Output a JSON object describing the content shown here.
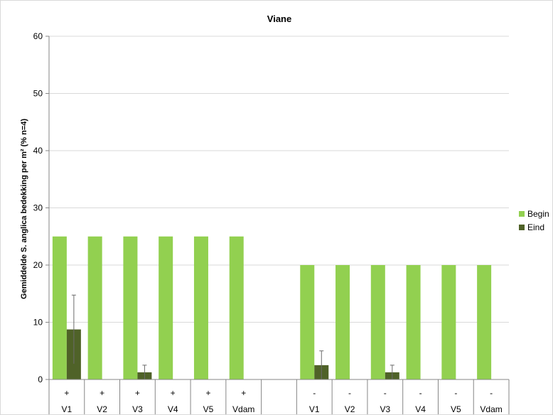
{
  "chart_data": {
    "type": "bar",
    "title": "Viane",
    "ylabel": "Gemiddelde S. anglica bedekking per m² (% n=4)",
    "xlabel": "",
    "ylim": [
      0,
      60
    ],
    "yticks": [
      0,
      10,
      20,
      30,
      40,
      50,
      60
    ],
    "grid": true,
    "legend_position": "right",
    "categories": [
      {
        "treatment": "+",
        "site": "V1"
      },
      {
        "treatment": "+",
        "site": "V2"
      },
      {
        "treatment": "+",
        "site": "V3"
      },
      {
        "treatment": "+",
        "site": "V4"
      },
      {
        "treatment": "+",
        "site": "V5"
      },
      {
        "treatment": "+",
        "site": "Vdam"
      },
      {
        "treatment": "",
        "site": ""
      },
      {
        "treatment": "-",
        "site": "V1"
      },
      {
        "treatment": "-",
        "site": "V2"
      },
      {
        "treatment": "-",
        "site": "V3"
      },
      {
        "treatment": "-",
        "site": "V4"
      },
      {
        "treatment": "-",
        "site": "V5"
      },
      {
        "treatment": "-",
        "site": "Vdam"
      }
    ],
    "series": [
      {
        "name": "Begin",
        "color": "#92d050",
        "values": [
          25,
          25,
          25,
          25,
          25,
          25,
          null,
          20,
          20,
          20,
          20,
          20,
          20
        ],
        "errors": [
          null,
          null,
          null,
          null,
          null,
          null,
          null,
          null,
          null,
          null,
          null,
          null,
          null
        ]
      },
      {
        "name": "Eind",
        "color": "#4f6228",
        "values": [
          8.75,
          0,
          1.25,
          0,
          0,
          null,
          null,
          2.5,
          0,
          1.25,
          0,
          0,
          0
        ],
        "errors": [
          6,
          null,
          1.25,
          null,
          null,
          null,
          null,
          2.5,
          null,
          1.25,
          null,
          null,
          null
        ]
      }
    ]
  }
}
